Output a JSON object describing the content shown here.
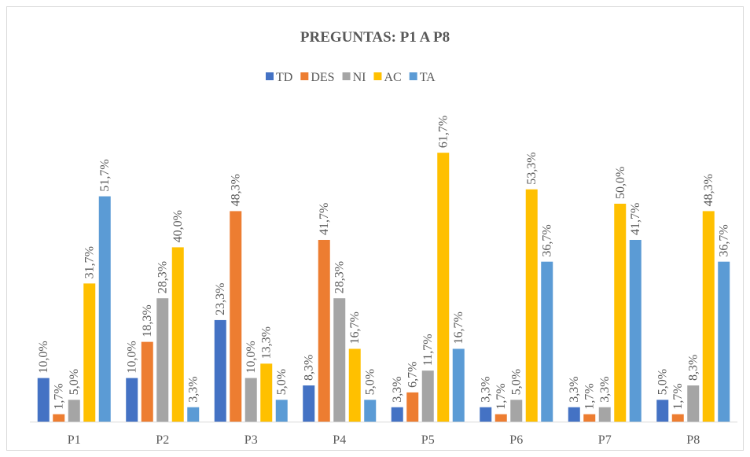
{
  "chart_data": {
    "type": "bar",
    "title": "PREGUNTAS: P1 A P8",
    "categories": [
      "P1",
      "P2",
      "P3",
      "P4",
      "P5",
      "P6",
      "P7",
      "P8"
    ],
    "series": [
      {
        "name": "TD",
        "color": "#4472c4",
        "values": [
          10.0,
          10.0,
          23.3,
          8.3,
          3.3,
          3.3,
          3.3,
          5.0
        ],
        "value_labels": [
          "10,0%",
          "10,0%",
          "23,3%",
          "8,3%",
          "3,3%",
          "3,3%",
          "3,3%",
          "5,0%"
        ]
      },
      {
        "name": "DES",
        "color": "#ed7d31",
        "values": [
          1.7,
          18.3,
          48.3,
          41.7,
          6.7,
          1.7,
          1.7,
          1.7
        ],
        "value_labels": [
          "1,7%",
          "18,3%",
          "48,3%",
          "41,7%",
          "6,7%",
          "1,7%",
          "1,7%",
          "1,7%"
        ]
      },
      {
        "name": "NI",
        "color": "#a5a5a5",
        "values": [
          5.0,
          28.3,
          10.0,
          28.3,
          11.7,
          5.0,
          3.3,
          8.3
        ],
        "value_labels": [
          "5,0%",
          "28,3%",
          "10,0%",
          "28,3%",
          "11,7%",
          "5,0%",
          "3,3%",
          "8,3%"
        ]
      },
      {
        "name": "AC",
        "color": "#ffc000",
        "values": [
          31.7,
          40.0,
          13.3,
          16.7,
          61.7,
          53.3,
          50.0,
          48.3
        ],
        "value_labels": [
          "31,7%",
          "40,0%",
          "13,3%",
          "16,7%",
          "61,7%",
          "53,3%",
          "50,0%",
          "48,3%"
        ]
      },
      {
        "name": "TA",
        "color": "#5b9bd5",
        "values": [
          51.7,
          3.3,
          5.0,
          5.0,
          16.7,
          36.7,
          41.7,
          36.7
        ],
        "value_labels": [
          "51,7%",
          "3,3%",
          "5,0%",
          "5,0%",
          "16,7%",
          "36,7%",
          "41,7%",
          "36,7%"
        ]
      }
    ],
    "legend": "top"
  }
}
